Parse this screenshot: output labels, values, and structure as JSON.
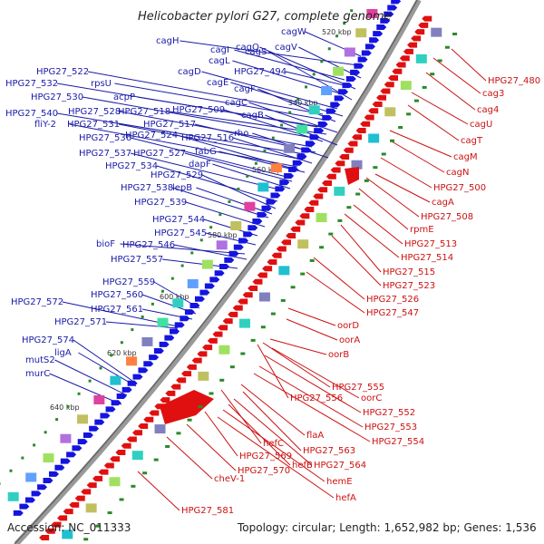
{
  "title": "Helicobacter pylori G27, complete genome",
  "footer": {
    "accession": "Accession: NC_011333",
    "info": "Topology: circular; Length: 1,652,982 bp; Genes: 1,536"
  },
  "ticks": [
    "520 kbp",
    "540 kbp",
    "560 kbp",
    "580 kbp",
    "600 kbp",
    "620 kbp",
    "640 kbp"
  ],
  "forward_labels": [
    "cagW",
    "cagH",
    "cagV",
    "cagI",
    "cagQ",
    "cagS",
    "cagL",
    "HPG27_522",
    "HPG27_494",
    "HPG27_532",
    "rpsU",
    "cagD",
    "cagE",
    "HPG27_530",
    "acpP",
    "cagF",
    "HPG27_540",
    "HPG27_528",
    "HPG27_518",
    "cagC",
    "HPG27_509",
    "fliY-2",
    "HPG27_531",
    "HPG27_517",
    "cagB",
    "HPG27_536",
    "HPG27_524",
    "HPG27_516",
    "rho",
    "HPG27_537",
    "HPG27_527",
    "fabG",
    "HPG27_534",
    "dapF",
    "HPG27_529",
    "HPG27_538",
    "lepB",
    "HPG27_539",
    "HPG27_544",
    "HPG27_545",
    "bioF",
    "HPG27_546",
    "HPG27_557",
    "HPG27_559",
    "HPG27_560",
    "HPG27_572",
    "HPG27_561",
    "HPG27_571",
    "HPG27_574",
    "ligA",
    "mutS2",
    "murC"
  ],
  "reverse_labels": [
    "HPG27_480",
    "cag3",
    "cag4",
    "cagU",
    "cagT",
    "cagM",
    "cagN",
    "HPG27_500",
    "cagA",
    "HPG27_508",
    "rpmE",
    "HPG27_513",
    "HPG27_514",
    "HPG27_515",
    "HPG27_523",
    "HPG27_526",
    "HPG27_547",
    "oorD",
    "oorA",
    "oorB",
    "HPG27_555",
    "HPG27_556",
    "oorC",
    "HPG27_552",
    "HPG27_553",
    "HPG27_554",
    "flaA",
    "hefC",
    "HPG27_563",
    "HPG27_569",
    "HPG27_564",
    "hefB",
    "HPG27_570",
    "hemE",
    "cheV-1",
    "hefA",
    "HPG27_581"
  ],
  "colors": {
    "forward": "#1a1aa8",
    "reverse": "#cc1111",
    "backbone": "#888888",
    "gc": "#2a8a2a"
  }
}
